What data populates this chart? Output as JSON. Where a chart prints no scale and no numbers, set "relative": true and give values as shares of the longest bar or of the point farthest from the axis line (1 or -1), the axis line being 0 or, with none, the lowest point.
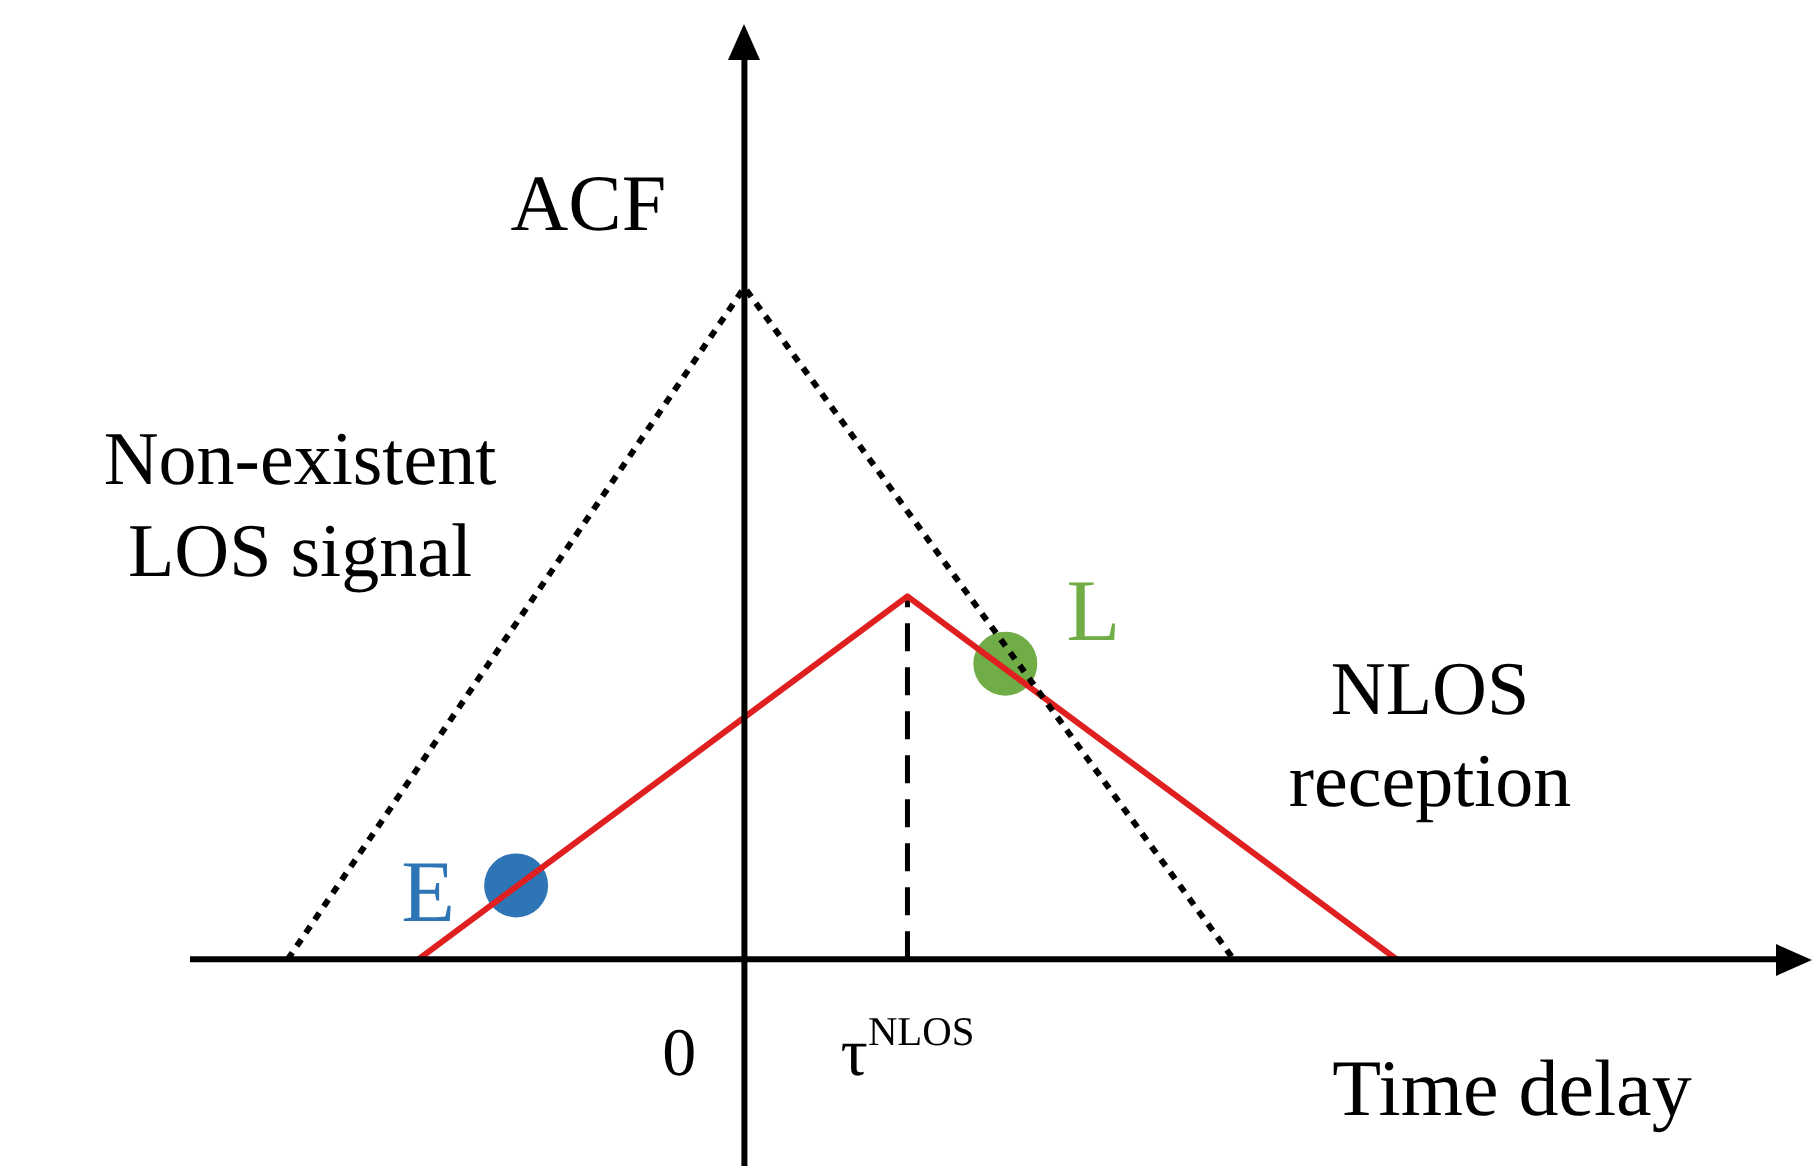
{
  "chart_data": {
    "type": "line",
    "relative": true,
    "ylabel": "ACF",
    "xlabel": "Time delay",
    "categories": [
      null,
      null,
      null,
      null,
      null,
      null,
      null,
      null,
      null,
      null,
      null,
      null,
      null,
      null,
      null,
      "0",
      null,
      null,
      null,
      null,
      null,
      null,
      "τ$^{NLOS}$",
      null,
      null,
      null,
      null,
      null,
      null,
      null,
      null,
      null,
      null,
      null,
      null,
      null,
      null,
      null,
      null,
      null,
      null,
      null,
      null,
      null,
      null,
      null,
      null,
      null,
      null,
      null
    ],
    "series": [
      {
        "color": "#000000",
        "line_style": "dotted",
        "marker": "none",
        "values": [
          null,
          null,
          null,
          0,
          null,
          null,
          null,
          null,
          null,
          null,
          null,
          null,
          null,
          null,
          null,
          null,
          null,
          1,
          null,
          null,
          null,
          null,
          null,
          null,
          null,
          null,
          null,
          null,
          null,
          null,
          null,
          null,
          0,
          null,
          null,
          null,
          null,
          null,
          null,
          null,
          null,
          null,
          null,
          null,
          null,
          null,
          null,
          null,
          null,
          null
        ]
      },
      {
        "color": "#e02020",
        "line_style": "solid",
        "marker": "none",
        "values": [
          null,
          null,
          null,
          null,
          null,
          null,
          null,
          0,
          null,
          null,
          null,
          null,
          null,
          null,
          null,
          null,
          null,
          null,
          null,
          null,
          null,
          null,
          0.54,
          null,
          null,
          null,
          null,
          null,
          null,
          null,
          null,
          null,
          null,
          null,
          null,
          null,
          null,
          0,
          null,
          null,
          null,
          null,
          null,
          null,
          null,
          null,
          null,
          null,
          null,
          null
        ]
      },
      {
        "type": "scatter",
        "name": "E",
        "color": "#2e75b6",
        "marker": "circle",
        "values": [
          null,
          null,
          null,
          null,
          null,
          null,
          null,
          null,
          null,
          null,
          0.11,
          null,
          null,
          null,
          null,
          null,
          null,
          null,
          null,
          null,
          null,
          null,
          null,
          null,
          null,
          null,
          null,
          null,
          null,
          null,
          null,
          null,
          null,
          null,
          null,
          null,
          null,
          null,
          null,
          null,
          null,
          null,
          null,
          null,
          null,
          null,
          null,
          null,
          null,
          null
        ]
      },
      {
        "type": "scatter",
        "name": "L",
        "color": "#70ad47",
        "marker": "circle",
        "values": [
          null,
          null,
          null,
          null,
          null,
          null,
          null,
          null,
          null,
          null,
          null,
          null,
          null,
          null,
          null,
          null,
          null,
          null,
          null,
          null,
          null,
          null,
          null,
          null,
          null,
          0.44,
          null,
          null,
          null,
          null,
          null,
          null,
          null,
          null,
          null,
          null,
          null,
          null,
          null,
          null,
          null,
          null,
          null,
          null,
          null,
          null,
          null,
          null,
          null,
          null
        ]
      }
    ],
    "ref_lines": [
      {
        "axis": "x",
        "value": "τ$^{NLOS}$",
        "color": "#000000",
        "line_style": "dashed"
      }
    ],
    "annotations": [
      "Non-existent\nLOS signal",
      "NLOS\nreception"
    ]
  }
}
